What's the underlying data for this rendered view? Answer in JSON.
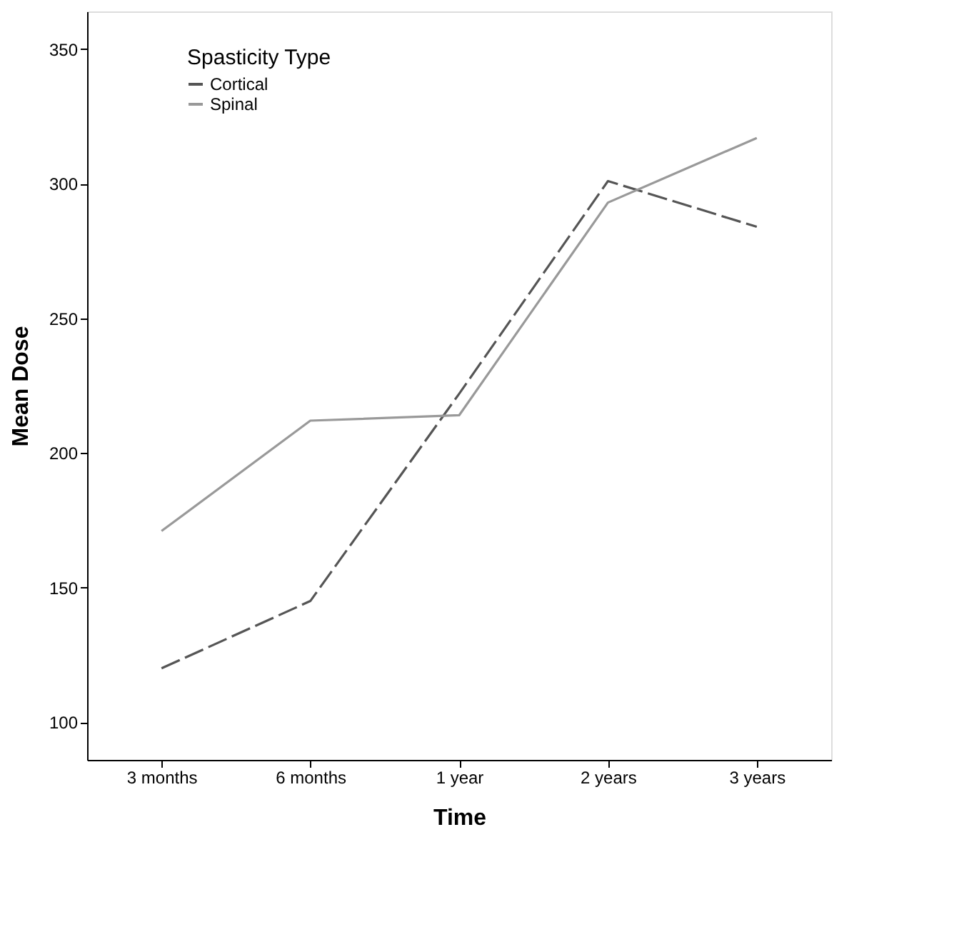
{
  "chart_data": {
    "type": "line",
    "xlabel": "Time",
    "ylabel": "Mean Dose",
    "legend_title": "Spasticity Type",
    "categories": [
      "3 months",
      "6 months",
      "1 year",
      "2 years",
      "3 years"
    ],
    "series": [
      {
        "name": "Cortical",
        "color": "#555555",
        "line_style": "dashed",
        "values": [
          120,
          145,
          222,
          301,
          284
        ]
      },
      {
        "name": "Spinal",
        "color": "#999999",
        "line_style": "solid",
        "values": [
          171,
          212,
          214,
          293,
          317
        ]
      }
    ],
    "ylim": [
      86,
      364
    ],
    "yticks": [
      100,
      150,
      200,
      250,
      300,
      350
    ],
    "grid": false,
    "legend": "top left",
    "marker": "none"
  }
}
